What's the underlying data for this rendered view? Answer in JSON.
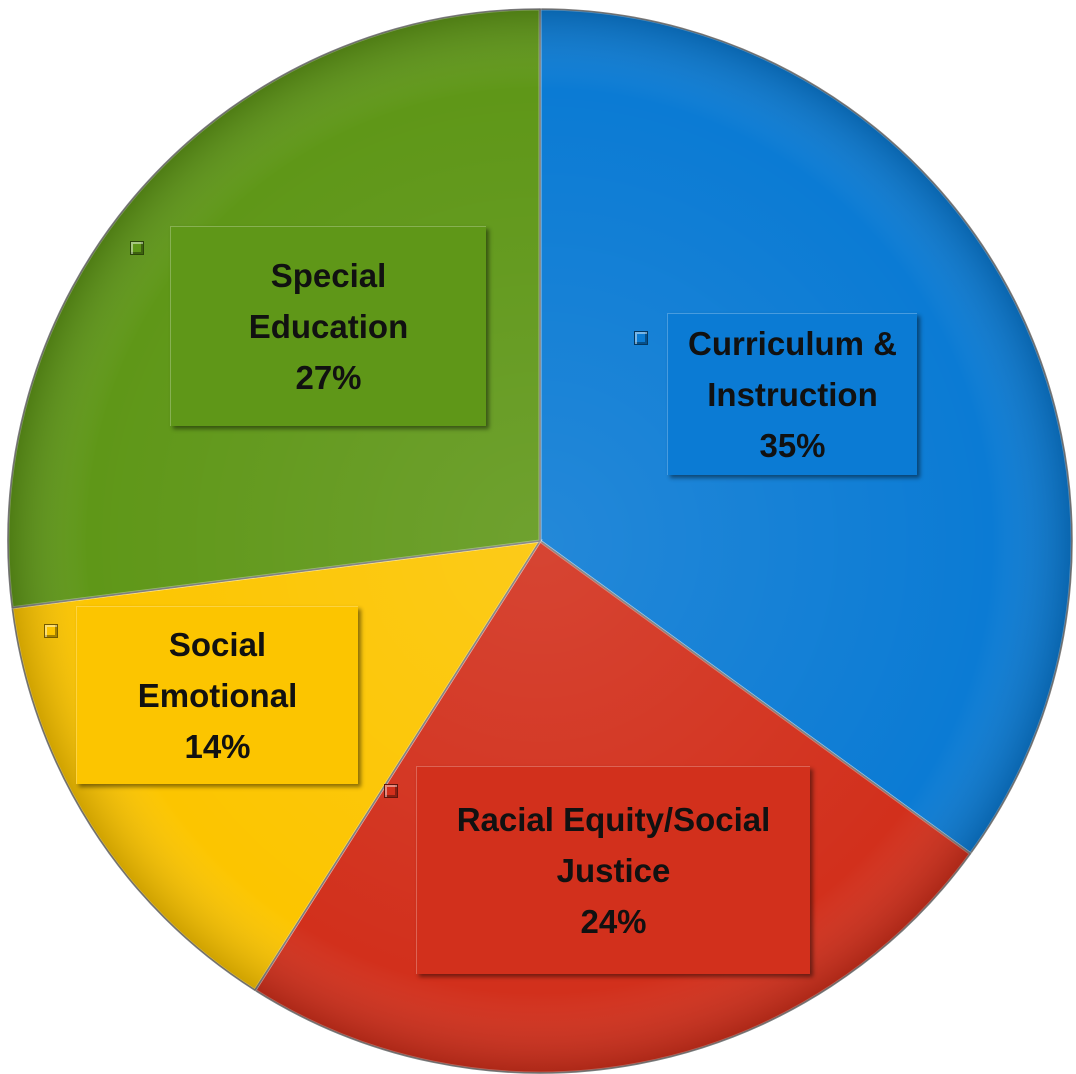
{
  "chart_data": {
    "type": "pie",
    "title": "",
    "start_angle_deg": 0,
    "direction": "clockwise",
    "slices": [
      {
        "label": "Curriculum & Instruction",
        "value": 35,
        "display": "35%",
        "color": "#0b7bd4"
      },
      {
        "label": "Racial Equity/Social Justice",
        "value": 24,
        "display": "24%",
        "color": "#d2301c"
      },
      {
        "label": "Social Emotional",
        "value": 14,
        "display": "14%",
        "color": "#fcc500"
      },
      {
        "label": "Special Education",
        "value": 27,
        "display": "27%",
        "color": "#5f9718"
      }
    ],
    "data_labels": [
      {
        "lines": [
          "Curriculum &",
          "Instruction"
        ],
        "percent": "35%"
      },
      {
        "lines": [
          "Racial Equity/Social",
          "Justice"
        ],
        "percent": "24%"
      },
      {
        "lines": [
          "Social",
          "Emotional"
        ],
        "percent": "14%"
      },
      {
        "lines": [
          "Special",
          "Education"
        ],
        "percent": "27%"
      }
    ],
    "legend_keys_in_labels": true,
    "grid": false
  }
}
